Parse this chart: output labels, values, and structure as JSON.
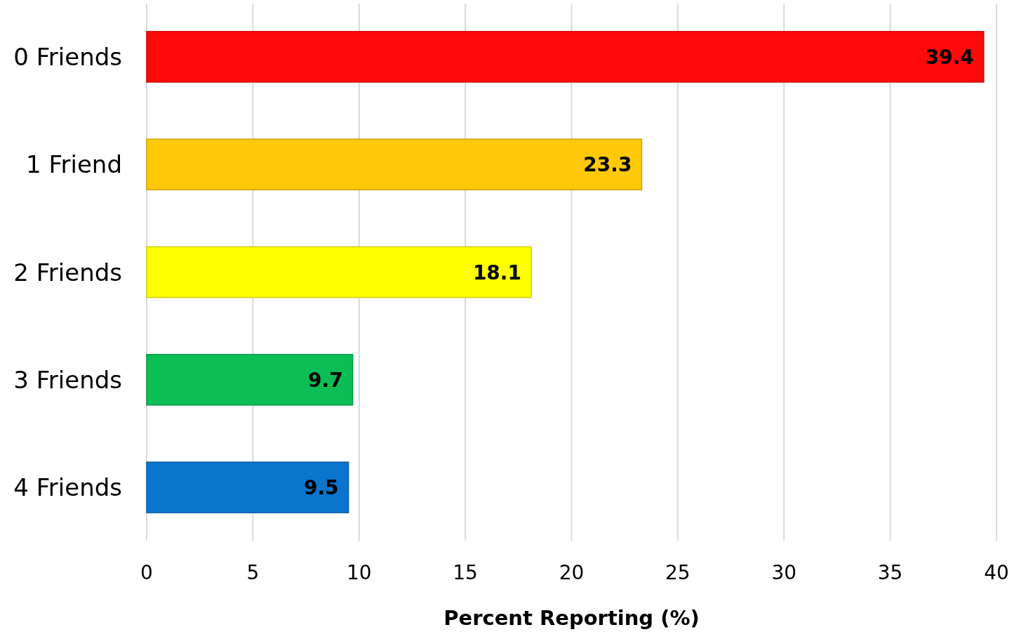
{
  "chart_data": {
    "type": "bar",
    "orientation": "horizontal",
    "xlabel": "Percent Reporting (%)",
    "categories": [
      "0 Friends",
      "1 Friend",
      "2 Friends",
      "3 Friends",
      "4 Friends"
    ],
    "values": [
      39.4,
      23.3,
      18.1,
      9.7,
      9.5
    ],
    "colors": [
      "#fe0a0a",
      "#ffc90a",
      "#ffff00",
      "#0bbd55",
      "#0a75cc"
    ],
    "xlim": [
      0,
      40
    ],
    "xticks": [
      0,
      5,
      10,
      15,
      20,
      25,
      30,
      35,
      40
    ],
    "grid": "x",
    "data_labels": true
  }
}
